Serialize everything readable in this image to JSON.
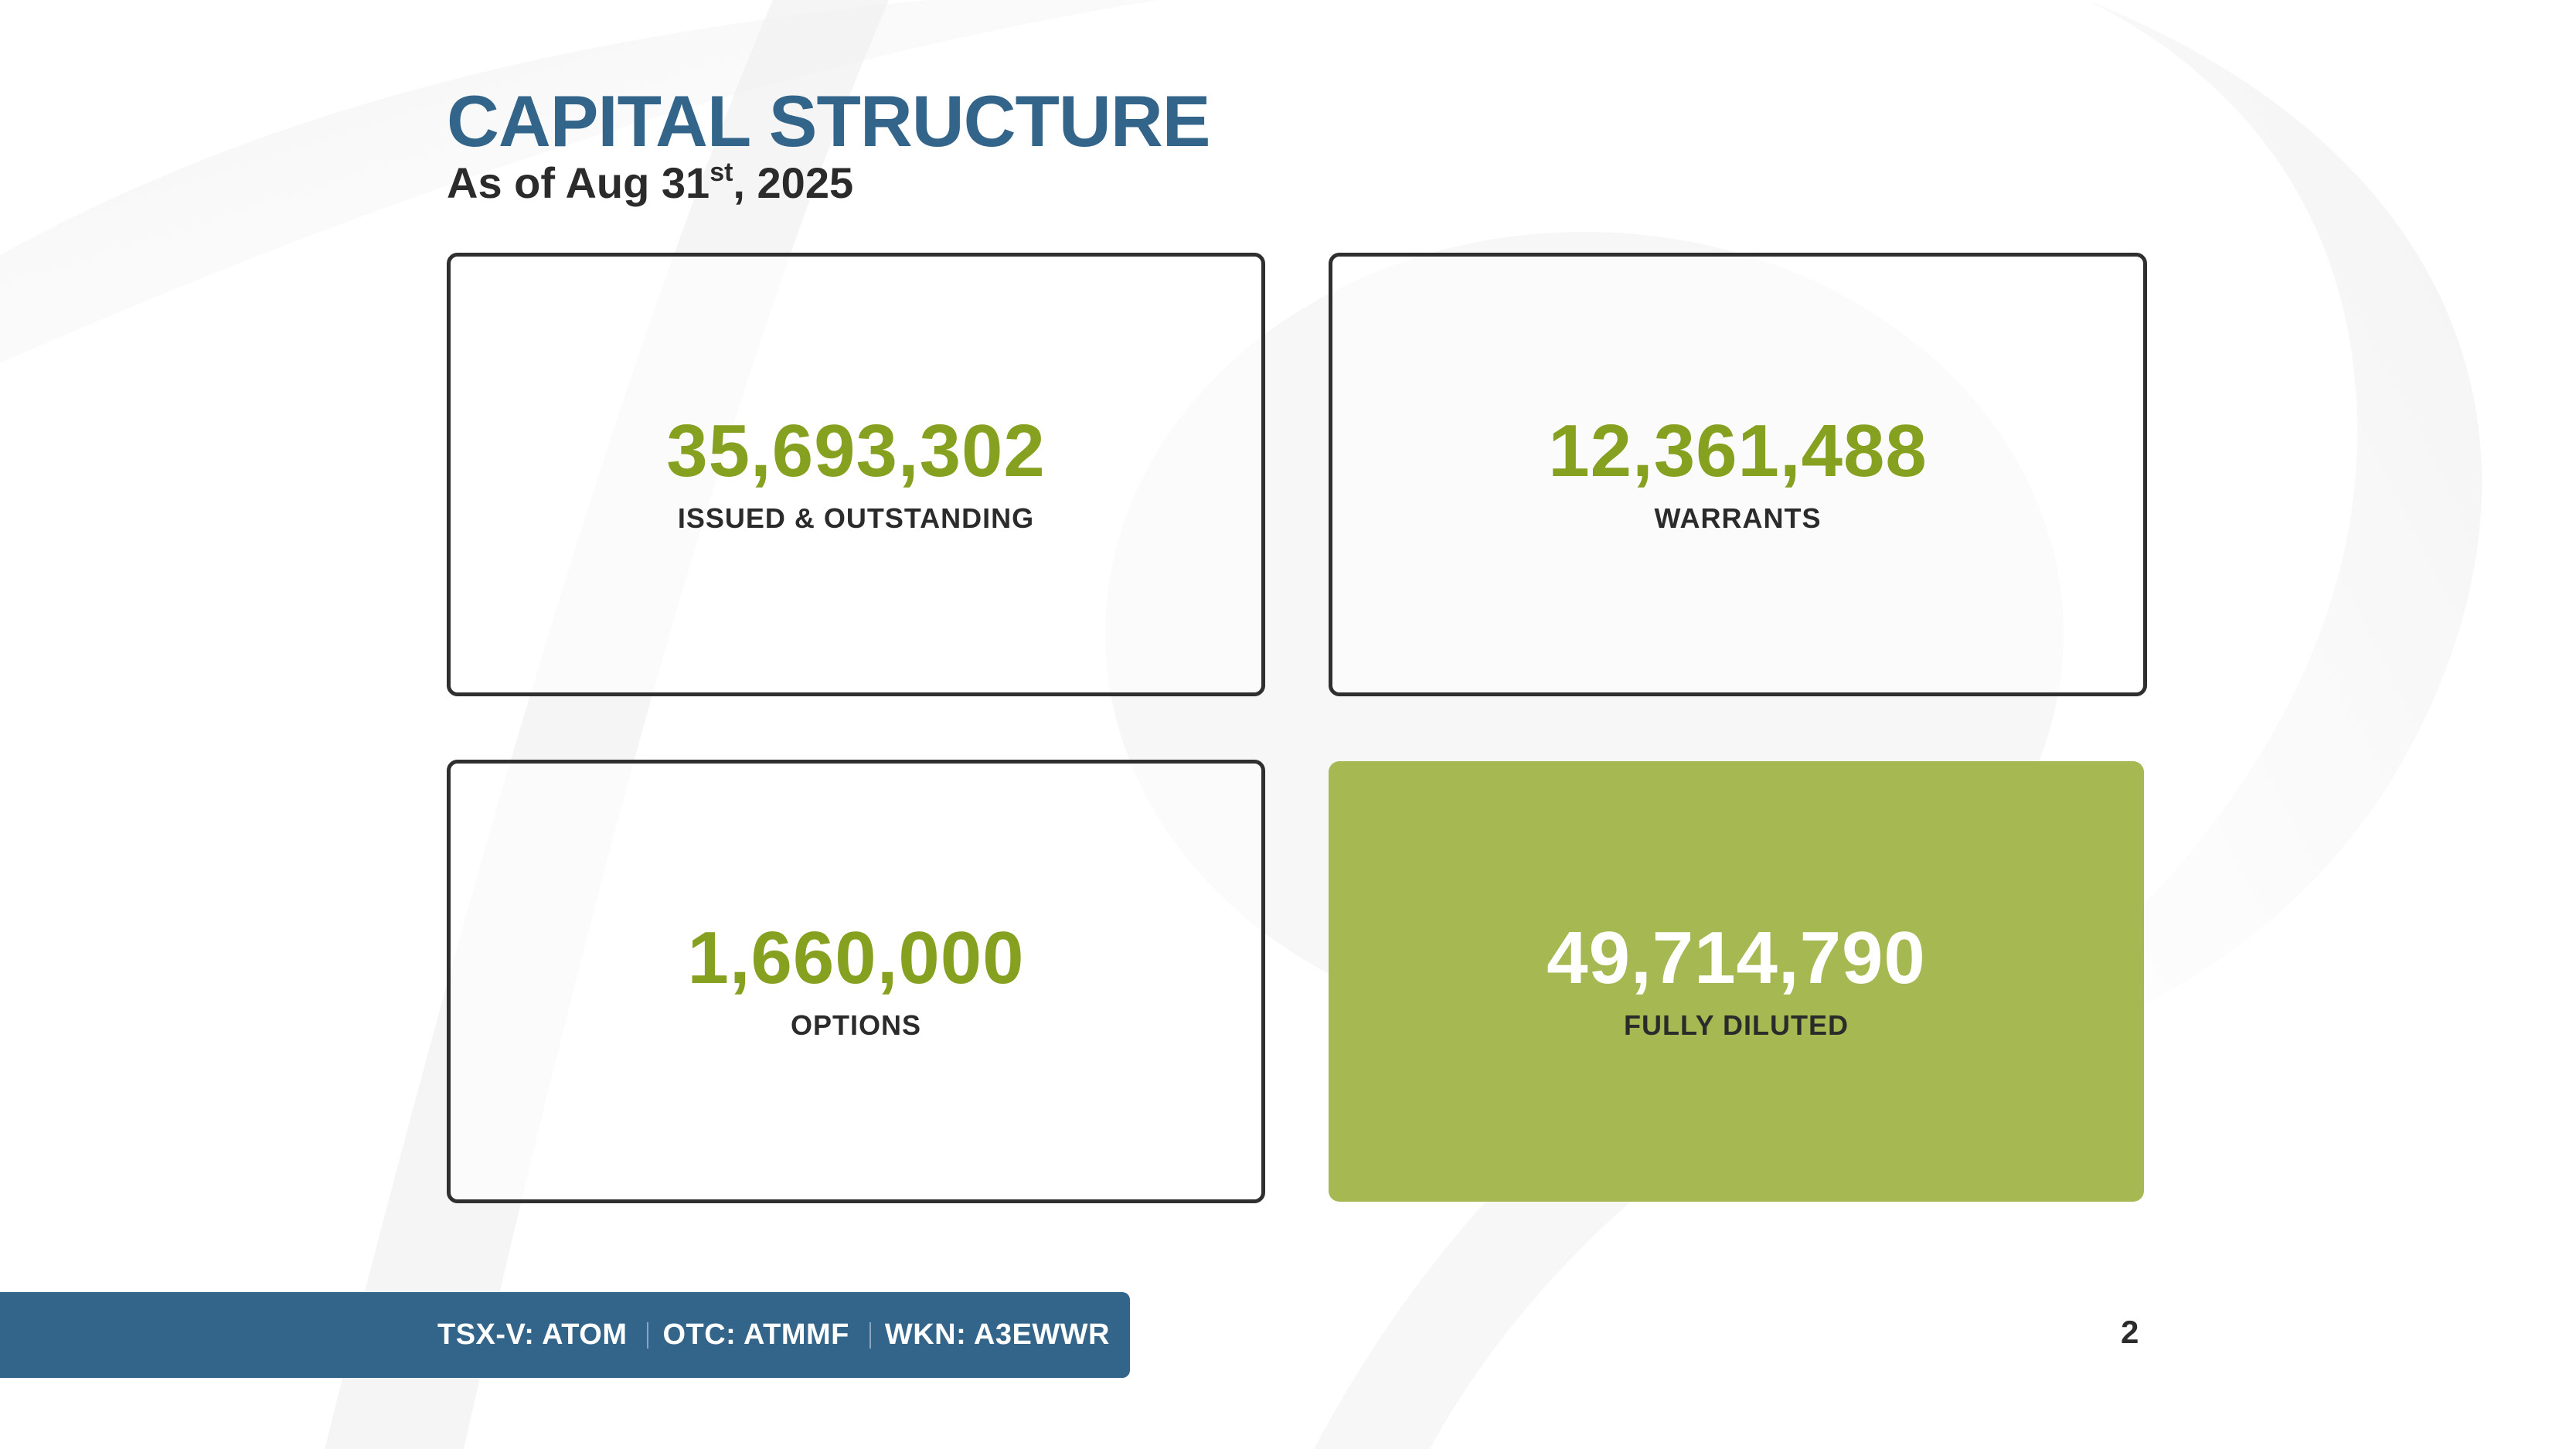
{
  "title": "CAPITAL STRUCTURE",
  "subtitle": {
    "prefix": "As of Aug 31",
    "superscript": "st",
    "suffix": ", 2025"
  },
  "cards": [
    {
      "value": "35,693,302",
      "label": "ISSUED & OUTSTANDING",
      "highlight": false
    },
    {
      "value": "12,361,488",
      "label": "WARRANTS",
      "highlight": false
    },
    {
      "value": "1,660,000",
      "label": "OPTIONS",
      "highlight": false
    },
    {
      "value": "49,714,790",
      "label": "FULLY DILUTED",
      "highlight": true
    }
  ],
  "footer": {
    "tickers": [
      "TSX-V: ATOM",
      "OTC: ATMMF",
      "WKN: A3EWWR"
    ]
  },
  "page_number": "2",
  "colors": {
    "title_blue": "#33648a",
    "value_green": "#86a020",
    "highlight_green": "#a6b852",
    "text_dark": "#2b2b2b"
  }
}
